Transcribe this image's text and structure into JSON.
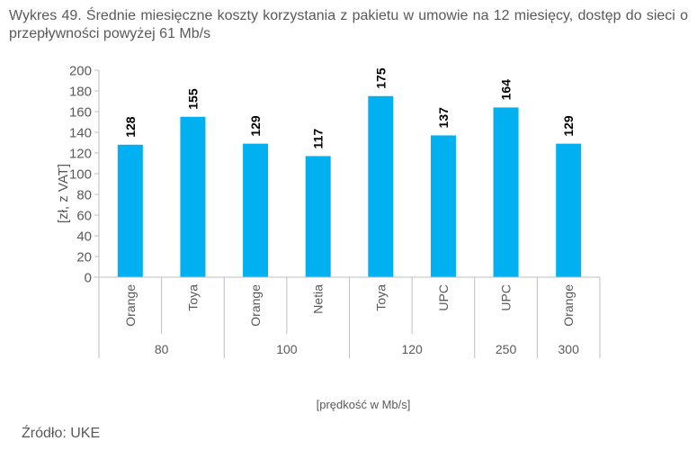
{
  "title": "Wykres 49. Średnie miesięczne koszty korzystania z pakietu w umowie na 12 miesięcy, dostęp do sieci o przepływności powyżej 61 Mb/s",
  "source": "Źródło: UKE",
  "colors": {
    "bar": "#00B0F0",
    "axis": "#BFBFBF",
    "text": "#595959",
    "data_label": "#000000"
  },
  "chart_data": {
    "type": "bar",
    "title": "Wykres 49. Średnie miesięczne koszty korzystania z pakietu w umowie na 12 miesięcy, dostęp do sieci o przepływności powyżej 61 Mb/s",
    "xlabel": "[prędkość w Mb/s]",
    "ylabel": "[zł, z VAT]",
    "ylim": [
      0,
      200
    ],
    "yticks": [
      0,
      20,
      40,
      60,
      80,
      100,
      120,
      140,
      160,
      180,
      200
    ],
    "grid": false,
    "legend": null,
    "categories": [
      "Orange",
      "Toya",
      "Orange",
      "Netia",
      "Toya",
      "UPC",
      "UPC",
      "Orange"
    ],
    "groups": [
      {
        "label": "80",
        "members": [
          "Orange",
          "Toya"
        ]
      },
      {
        "label": "100",
        "members": [
          "Orange",
          "Netia"
        ]
      },
      {
        "label": "120",
        "members": [
          "Toya",
          "UPC"
        ]
      },
      {
        "label": "250",
        "members": [
          "UPC"
        ]
      },
      {
        "label": "300",
        "members": [
          "Orange"
        ]
      }
    ],
    "group_sizes": [
      2,
      2,
      2,
      1,
      1
    ],
    "values": [
      128,
      155,
      129,
      117,
      175,
      137,
      164,
      129
    ],
    "data_labels": [
      "128",
      "155",
      "129",
      "117",
      "175",
      "137",
      "164",
      "129"
    ]
  }
}
